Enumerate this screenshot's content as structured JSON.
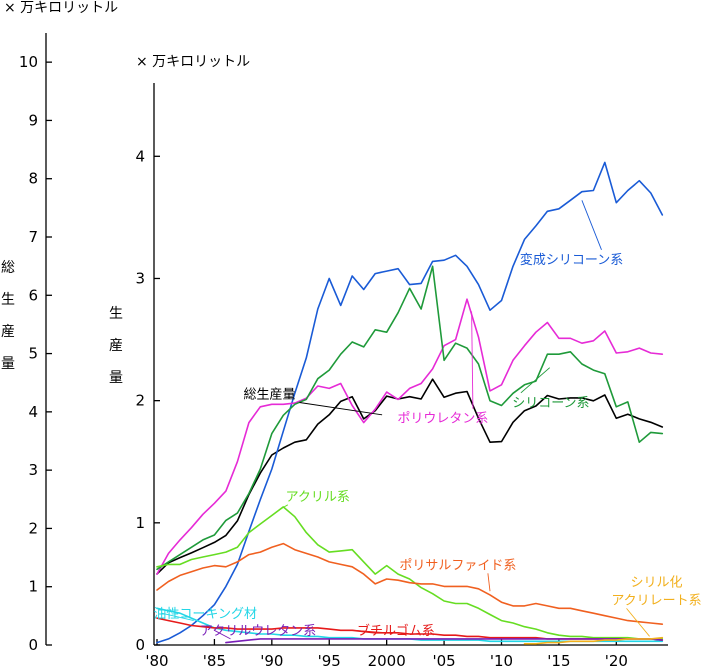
{
  "chart_data": {
    "type": "line",
    "left_axis": {
      "unit": "× 万キロリットル",
      "title_chars": [
        "総",
        "生",
        "産",
        "量"
      ],
      "ylim": [
        0,
        10.5
      ],
      "ticks": [
        "0",
        "1",
        "2",
        "3",
        "4",
        "5",
        "6",
        "7",
        "8",
        "9",
        "10"
      ],
      "tick_values": [
        0,
        1,
        2,
        3,
        4,
        5,
        6,
        7,
        8,
        9,
        10
      ]
    },
    "right_axis": {
      "unit": "× 万キロリットル",
      "title_chars": [
        "生",
        "産",
        "量"
      ],
      "ylim": [
        0,
        4.6
      ],
      "ticks": [
        "0",
        "1",
        "2",
        "3",
        "4"
      ],
      "tick_values": [
        0,
        1,
        2,
        3,
        4
      ]
    },
    "x_axis": {
      "xlim": [
        1980,
        2024.5
      ],
      "ticks": [
        "'80",
        "'85",
        "'90",
        "'95",
        "2000",
        "'05",
        "'10",
        "'15",
        "'20"
      ],
      "tick_values": [
        1980,
        1985,
        1990,
        1995,
        2000,
        2005,
        2010,
        2015,
        2020
      ]
    },
    "series": [
      {
        "name": "総生産量",
        "color": "#000000",
        "x": [
          1980,
          1981,
          1982,
          1983,
          1984,
          1985,
          1986,
          1987,
          1988,
          1989,
          1990,
          1991,
          1992,
          1993,
          1994,
          1995,
          1996,
          1997,
          1998,
          1999,
          2000,
          2001,
          2002,
          2003,
          2004,
          2005,
          2006,
          2007,
          2008,
          2009,
          2010,
          2011,
          2012,
          2013,
          2014,
          2015,
          2016,
          2017,
          2018,
          2019,
          2020,
          2021,
          2022,
          2023,
          2024
        ],
        "y": [
          1.22,
          1.41,
          1.5,
          1.58,
          1.67,
          1.76,
          1.88,
          2.13,
          2.58,
          2.95,
          3.26,
          3.38,
          3.48,
          3.52,
          3.79,
          3.95,
          4.18,
          4.26,
          3.88,
          4.02,
          4.27,
          4.22,
          4.26,
          4.22,
          4.56,
          4.25,
          4.32,
          4.35,
          3.89,
          3.48,
          3.49,
          3.82,
          4.02,
          4.1,
          4.28,
          4.22,
          4.24,
          4.24,
          4.19,
          4.29,
          3.89,
          3.96,
          3.88,
          3.82,
          3.74
        ]
      },
      {
        "name": "変成シリコーン系",
        "color": "#1a5bd6",
        "x": [
          1980,
          1981,
          1982,
          1983,
          1984,
          1985,
          1986,
          1987,
          1988,
          1989,
          1990,
          1991,
          1992,
          1993,
          1994,
          1995,
          1996,
          1997,
          1998,
          1999,
          2000,
          2001,
          2002,
          2003,
          2004,
          2005,
          2006,
          2007,
          2008,
          2009,
          2010,
          2011,
          2012,
          2013,
          2014,
          2015,
          2016,
          2017,
          2018,
          2019,
          2020,
          2021,
          2022,
          2023,
          2024
        ],
        "y": [
          0.02,
          0.05,
          0.1,
          0.16,
          0.24,
          0.33,
          0.48,
          0.66,
          0.93,
          1.19,
          1.44,
          1.75,
          2.06,
          2.35,
          2.75,
          3.0,
          2.78,
          3.02,
          2.91,
          3.04,
          3.06,
          3.08,
          2.95,
          2.96,
          3.14,
          3.15,
          3.19,
          3.1,
          2.95,
          2.74,
          2.82,
          3.1,
          3.32,
          3.43,
          3.55,
          3.57,
          3.64,
          3.71,
          3.72,
          3.95,
          3.62,
          3.72,
          3.8,
          3.7,
          3.52
        ]
      },
      {
        "name": "ポリウレタン系",
        "color": "#e62bd6",
        "x": [
          1980,
          1981,
          1982,
          1983,
          1984,
          1985,
          1986,
          1987,
          1988,
          1989,
          1990,
          1991,
          1992,
          1993,
          1994,
          1995,
          1996,
          1997,
          1998,
          1999,
          2000,
          2001,
          2002,
          2003,
          2004,
          2005,
          2006,
          2007,
          2008,
          2009,
          2010,
          2011,
          2012,
          2013,
          2014,
          2015,
          2016,
          2017,
          2018,
          2019,
          2020,
          2021,
          2022,
          2023,
          2024
        ],
        "y": [
          0.58,
          0.75,
          0.86,
          0.96,
          1.07,
          1.16,
          1.26,
          1.5,
          1.82,
          1.95,
          1.97,
          1.97,
          1.98,
          2.02,
          2.12,
          2.1,
          2.14,
          1.96,
          1.82,
          1.93,
          2.07,
          2.01,
          2.1,
          2.14,
          2.26,
          2.45,
          2.5,
          2.83,
          2.52,
          2.08,
          2.13,
          2.33,
          2.45,
          2.56,
          2.64,
          2.51,
          2.51,
          2.47,
          2.49,
          2.57,
          2.39,
          2.4,
          2.43,
          2.39,
          2.38
        ]
      },
      {
        "name": "シリコーン系",
        "color": "#1f9a3a",
        "x": [
          1980,
          1981,
          1982,
          1983,
          1984,
          1985,
          1986,
          1987,
          1988,
          1989,
          1990,
          1991,
          1992,
          1993,
          1994,
          1995,
          1996,
          1997,
          1998,
          1999,
          2000,
          2001,
          2002,
          2003,
          2004,
          2005,
          2006,
          2007,
          2008,
          2009,
          2010,
          2011,
          2012,
          2013,
          2014,
          2015,
          2016,
          2017,
          2018,
          2019,
          2020,
          2021,
          2022,
          2023,
          2024
        ],
        "y": [
          0.62,
          0.68,
          0.74,
          0.8,
          0.86,
          0.9,
          1.02,
          1.08,
          1.24,
          1.44,
          1.73,
          1.88,
          1.97,
          2.01,
          2.18,
          2.25,
          2.38,
          2.48,
          2.44,
          2.58,
          2.56,
          2.72,
          2.92,
          2.75,
          3.1,
          2.33,
          2.47,
          2.43,
          2.3,
          2.0,
          1.96,
          2.06,
          2.13,
          2.16,
          2.38,
          2.38,
          2.4,
          2.3,
          2.25,
          2.22,
          1.95,
          1.99,
          1.66,
          1.74,
          1.73
        ]
      },
      {
        "name": "アクリル系",
        "color": "#66dd22",
        "x": [
          1980,
          1981,
          1982,
          1983,
          1984,
          1985,
          1986,
          1987,
          1988,
          1989,
          1990,
          1991,
          1992,
          1993,
          1994,
          1995,
          1996,
          1997,
          1998,
          1999,
          2000,
          2001,
          2002,
          2003,
          2004,
          2005,
          2006,
          2007,
          2008,
          2009,
          2010,
          2011,
          2012,
          2013,
          2014,
          2015,
          2016,
          2017,
          2018,
          2019,
          2020,
          2021,
          2022,
          2023,
          2024
        ],
        "y": [
          0.64,
          0.66,
          0.66,
          0.7,
          0.72,
          0.74,
          0.76,
          0.8,
          0.92,
          0.99,
          1.06,
          1.13,
          1.05,
          0.92,
          0.82,
          0.76,
          0.77,
          0.78,
          0.68,
          0.58,
          0.65,
          0.58,
          0.54,
          0.47,
          0.42,
          0.36,
          0.34,
          0.34,
          0.3,
          0.25,
          0.2,
          0.18,
          0.15,
          0.13,
          0.1,
          0.08,
          0.07,
          0.07,
          0.06,
          0.06,
          0.06,
          0.06,
          0.05,
          0.05,
          0.05
        ]
      },
      {
        "name": "ポリサルファイド系",
        "color": "#f06020",
        "x": [
          1980,
          1981,
          1982,
          1983,
          1984,
          1985,
          1986,
          1987,
          1988,
          1989,
          1990,
          1991,
          1992,
          1993,
          1994,
          1995,
          1996,
          1997,
          1998,
          1999,
          2000,
          2001,
          2002,
          2003,
          2004,
          2005,
          2006,
          2007,
          2008,
          2009,
          2010,
          2011,
          2012,
          2013,
          2014,
          2015,
          2016,
          2017,
          2018,
          2019,
          2020,
          2021,
          2022,
          2023,
          2024
        ],
        "y": [
          0.45,
          0.52,
          0.57,
          0.6,
          0.63,
          0.65,
          0.64,
          0.68,
          0.74,
          0.76,
          0.8,
          0.83,
          0.78,
          0.75,
          0.72,
          0.68,
          0.66,
          0.64,
          0.58,
          0.5,
          0.54,
          0.53,
          0.51,
          0.5,
          0.5,
          0.48,
          0.48,
          0.48,
          0.46,
          0.41,
          0.35,
          0.32,
          0.32,
          0.34,
          0.32,
          0.3,
          0.3,
          0.28,
          0.26,
          0.24,
          0.22,
          0.2,
          0.19,
          0.18,
          0.17
        ]
      },
      {
        "name": "油性コーキング材",
        "color": "#22d6e6",
        "x": [
          1980,
          1981,
          1982,
          1983,
          1984,
          1985,
          1986,
          1987,
          1988,
          1989,
          1990,
          1991,
          1992,
          1993,
          1994,
          1995,
          1996,
          1997,
          1998,
          1999,
          2000,
          2001,
          2002,
          2003,
          2004,
          2005,
          2006,
          2007,
          2008,
          2009,
          2010,
          2011,
          2012,
          2013,
          2014,
          2015,
          2016,
          2017,
          2018,
          2019,
          2020,
          2021,
          2022,
          2023,
          2024
        ],
        "y": [
          0.3,
          0.28,
          0.26,
          0.22,
          0.18,
          0.14,
          0.12,
          0.11,
          0.1,
          0.09,
          0.09,
          0.08,
          0.08,
          0.07,
          0.07,
          0.06,
          0.06,
          0.06,
          0.05,
          0.05,
          0.05,
          0.05,
          0.05,
          0.04,
          0.04,
          0.04,
          0.04,
          0.04,
          0.04,
          0.03,
          0.03,
          0.03,
          0.03,
          0.03,
          0.03,
          0.03,
          0.03,
          0.03,
          0.03,
          0.03,
          0.03,
          0.03,
          0.03,
          0.03,
          0.03
        ]
      },
      {
        "name": "ブチルゴム系",
        "color": "#e61a1a",
        "x": [
          1980,
          1981,
          1982,
          1983,
          1984,
          1985,
          1986,
          1987,
          1988,
          1989,
          1990,
          1991,
          1992,
          1993,
          1994,
          1995,
          1996,
          1997,
          1998,
          1999,
          2000,
          2001,
          2002,
          2003,
          2004,
          2005,
          2006,
          2007,
          2008,
          2009,
          2010,
          2011,
          2012,
          2013,
          2014,
          2015,
          2016,
          2017,
          2018,
          2019,
          2020,
          2021,
          2022,
          2023,
          2024
        ],
        "y": [
          0.22,
          0.2,
          0.18,
          0.16,
          0.15,
          0.14,
          0.14,
          0.13,
          0.13,
          0.13,
          0.13,
          0.14,
          0.14,
          0.14,
          0.14,
          0.13,
          0.12,
          0.12,
          0.11,
          0.1,
          0.1,
          0.1,
          0.09,
          0.09,
          0.09,
          0.08,
          0.08,
          0.07,
          0.07,
          0.06,
          0.06,
          0.06,
          0.06,
          0.06,
          0.05,
          0.05,
          0.05,
          0.05,
          0.05,
          0.05,
          0.05,
          0.05,
          0.05,
          0.05,
          0.04
        ]
      },
      {
        "name": "アクリルウレタン系",
        "color": "#7a1fb8",
        "x": [
          1986,
          1987,
          1988,
          1989,
          1990,
          1991,
          1992,
          1993,
          1994,
          1995,
          1996,
          1997,
          1998,
          1999,
          2000,
          2001,
          2002,
          2003,
          2004,
          2005,
          2006,
          2007,
          2008,
          2009,
          2010,
          2011,
          2012,
          2013,
          2014,
          2015,
          2016,
          2017,
          2018,
          2019,
          2020,
          2021,
          2022,
          2023,
          2024
        ],
        "y": [
          0.02,
          0.03,
          0.04,
          0.05,
          0.05,
          0.05,
          0.05,
          0.05,
          0.05,
          0.05,
          0.05,
          0.05,
          0.05,
          0.05,
          0.05,
          0.05,
          0.05,
          0.05,
          0.05,
          0.05,
          0.05,
          0.05,
          0.05,
          0.05,
          0.05,
          0.05,
          0.05,
          0.05,
          0.05,
          0.05,
          0.05,
          0.05,
          0.05,
          0.05,
          0.05,
          0.05,
          0.05,
          0.05,
          0.04
        ]
      },
      {
        "name": "シリル化アクリレート系",
        "color": "#f2b01e",
        "x": [
          2012,
          2013,
          2014,
          2015,
          2016,
          2017,
          2018,
          2019,
          2020,
          2021,
          2022,
          2023,
          2024
        ],
        "y": [
          0.01,
          0.01,
          0.02,
          0.02,
          0.03,
          0.03,
          0.03,
          0.04,
          0.04,
          0.05,
          0.05,
          0.05,
          0.06
        ]
      }
    ],
    "labels": [
      {
        "series": "総生産量",
        "lines": [
          "総生産量"
        ],
        "color": "#000000",
        "anchor_x": 1989.8,
        "anchor_y": 4.23,
        "point_x": 1999.6,
        "point_y": 3.95
      },
      {
        "series": "変成シリコーン系",
        "lines": [
          "変成シリコーン系"
        ],
        "color": "#1a5bd6",
        "anchor_x": 2016.1,
        "anchor_y": 3.12,
        "point_x": 2017.0,
        "point_y": 3.64
      },
      {
        "series": "ポリウレタン系",
        "lines": [
          "ポリウレタン系"
        ],
        "color": "#e62bd6",
        "anchor_x": 2004.9,
        "anchor_y": 1.82,
        "point_x": 2007.4,
        "point_y": 2.73
      },
      {
        "series": "シリコーン系",
        "lines": [
          "シリコーン系"
        ],
        "color": "#1f9a3a",
        "anchor_x": 2014.3,
        "anchor_y": 1.95,
        "point_x": 2014.2,
        "point_y": 2.27
      },
      {
        "series": "アクリル系",
        "lines": [
          "アクリル系"
        ],
        "color": "#66dd22",
        "anchor_x": 1994.0,
        "anchor_y": 1.18,
        "point_x": 1990.7,
        "point_y": 1.11
      },
      {
        "series": "ポリサルファイド系",
        "lines": [
          "ポリサルファイド系"
        ],
        "color": "#f06020",
        "anchor_x": 2006.2,
        "anchor_y": 0.62,
        "point_x": 2009.0,
        "point_y": 0.44
      },
      {
        "series": "シリル化アクリレート系",
        "lines": [
          "シリル化",
          "アクリレート系"
        ],
        "color": "#f2b01e",
        "anchor_x": 2023.5,
        "anchor_y": 0.48,
        "point_x": 2022.9,
        "point_y": 0.07
      },
      {
        "series": "油性コーキング材",
        "lines": [
          "油性コーキング材"
        ],
        "color": "#22d6e6",
        "anchor_x": 1984.2,
        "anchor_y": 0.22,
        "point_x": 1983.2,
        "point_y": 0.2
      },
      {
        "series": "アクリルウレタン系",
        "lines": [
          "アクリルウレタン系"
        ],
        "color": "#7a1fb8",
        "anchor_x": 1988.8,
        "anchor_y": 0.08,
        "point_x": 1986.4,
        "point_y": 0.05
      },
      {
        "series": "ブチルゴム系",
        "lines": [
          "ブチルゴム系"
        ],
        "color": "#e61a1a",
        "anchor_x": 2000.8,
        "anchor_y": 0.08,
        "point_x": 2000.0,
        "point_y": 0.1
      }
    ]
  }
}
